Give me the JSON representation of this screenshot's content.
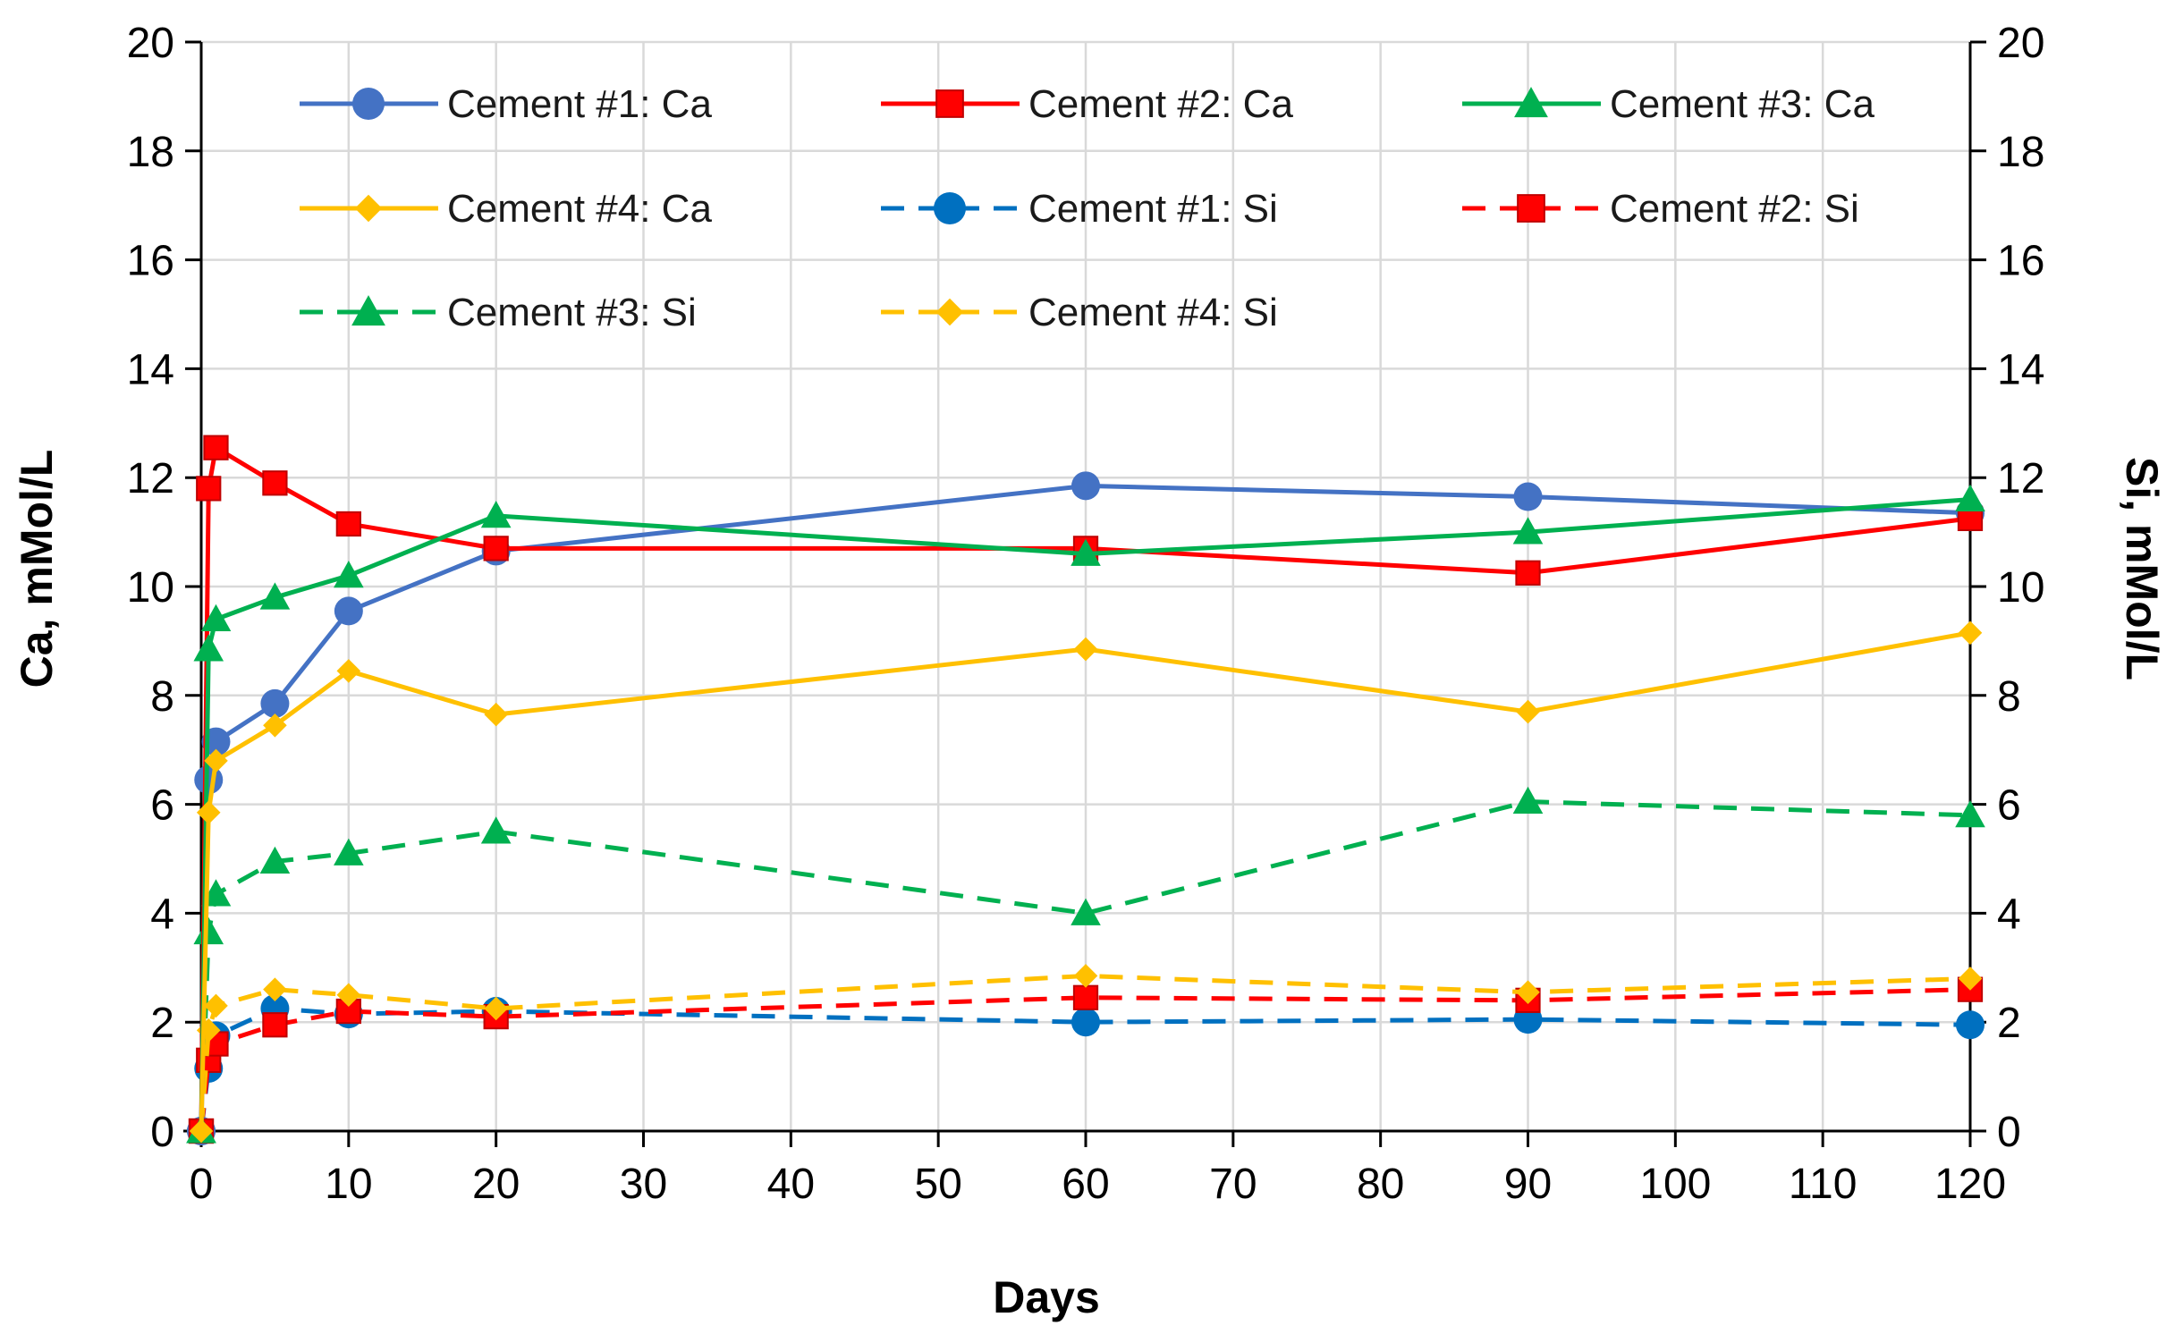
{
  "chart_data": {
    "type": "line",
    "title": "",
    "xlabel": "Days",
    "ylabel": "Ca, mMol/L",
    "y2label": "Si, mMol/L",
    "xlim": [
      0,
      120
    ],
    "ylim": [
      0,
      20
    ],
    "y2lim": [
      0,
      20
    ],
    "xticks": [
      0,
      10,
      20,
      30,
      40,
      50,
      60,
      70,
      80,
      90,
      100,
      110,
      120
    ],
    "yticks": [
      0,
      2,
      4,
      6,
      8,
      10,
      12,
      14,
      16,
      18,
      20
    ],
    "grid": true,
    "legend_position": "top",
    "series": [
      {
        "name": "Cement #1: Ca",
        "axis": "left",
        "color": "#4472C4",
        "marker": "circle",
        "dash": "solid",
        "x": [
          0,
          0.5,
          1,
          5,
          10,
          20,
          60,
          90,
          120
        ],
        "y": [
          0,
          6.45,
          7.15,
          7.85,
          9.55,
          10.65,
          11.85,
          11.65,
          11.35
        ]
      },
      {
        "name": "Cement #2: Ca",
        "axis": "left",
        "color": "#FF0000",
        "marker": "square",
        "dash": "solid",
        "x": [
          0,
          0.5,
          1,
          5,
          10,
          20,
          60,
          90,
          120
        ],
        "y": [
          0,
          11.8,
          12.55,
          11.9,
          11.15,
          10.7,
          10.7,
          10.25,
          11.25
        ]
      },
      {
        "name": "Cement #3: Ca",
        "axis": "left",
        "color": "#00B050",
        "marker": "triangle",
        "dash": "solid",
        "x": [
          0,
          0.5,
          1,
          5,
          10,
          20,
          60,
          90,
          120
        ],
        "y": [
          0,
          8.85,
          9.4,
          9.8,
          10.2,
          11.3,
          10.6,
          11.0,
          11.6
        ]
      },
      {
        "name": "Cement #4: Ca",
        "axis": "left",
        "color": "#FFC000",
        "marker": "diamond",
        "dash": "solid",
        "x": [
          0,
          0.5,
          1,
          5,
          10,
          20,
          60,
          90,
          120
        ],
        "y": [
          0,
          5.85,
          6.8,
          7.45,
          8.45,
          7.65,
          8.85,
          7.7,
          9.15
        ]
      },
      {
        "name": "Cement #1: Si",
        "axis": "right",
        "color": "#0070C0",
        "marker": "circle",
        "dash": "dashed",
        "x": [
          0,
          0.5,
          1,
          5,
          10,
          20,
          60,
          90,
          120
        ],
        "y": [
          0,
          1.15,
          1.75,
          2.25,
          2.15,
          2.2,
          2.0,
          2.05,
          1.95
        ]
      },
      {
        "name": "Cement #2: Si",
        "axis": "right",
        "color": "#FF0000",
        "marker": "square",
        "dash": "dashed",
        "x": [
          0,
          0.5,
          1,
          5,
          10,
          20,
          60,
          90,
          120
        ],
        "y": [
          0,
          1.3,
          1.6,
          1.95,
          2.2,
          2.1,
          2.45,
          2.4,
          2.6
        ]
      },
      {
        "name": "Cement #3: Si",
        "axis": "right",
        "color": "#00B050",
        "marker": "triangle",
        "dash": "dashed",
        "x": [
          0,
          0.5,
          1,
          5,
          10,
          20,
          60,
          90,
          120
        ],
        "y": [
          0,
          3.65,
          4.35,
          4.95,
          5.1,
          5.5,
          4.0,
          6.05,
          5.8
        ]
      },
      {
        "name": "Cement #4: Si",
        "axis": "right",
        "color": "#FFC000",
        "marker": "diamond",
        "dash": "dashed",
        "x": [
          0,
          0.5,
          1,
          5,
          10,
          20,
          60,
          90,
          120
        ],
        "y": [
          0,
          1.85,
          2.3,
          2.6,
          2.5,
          2.25,
          2.85,
          2.55,
          2.8
        ]
      }
    ]
  }
}
